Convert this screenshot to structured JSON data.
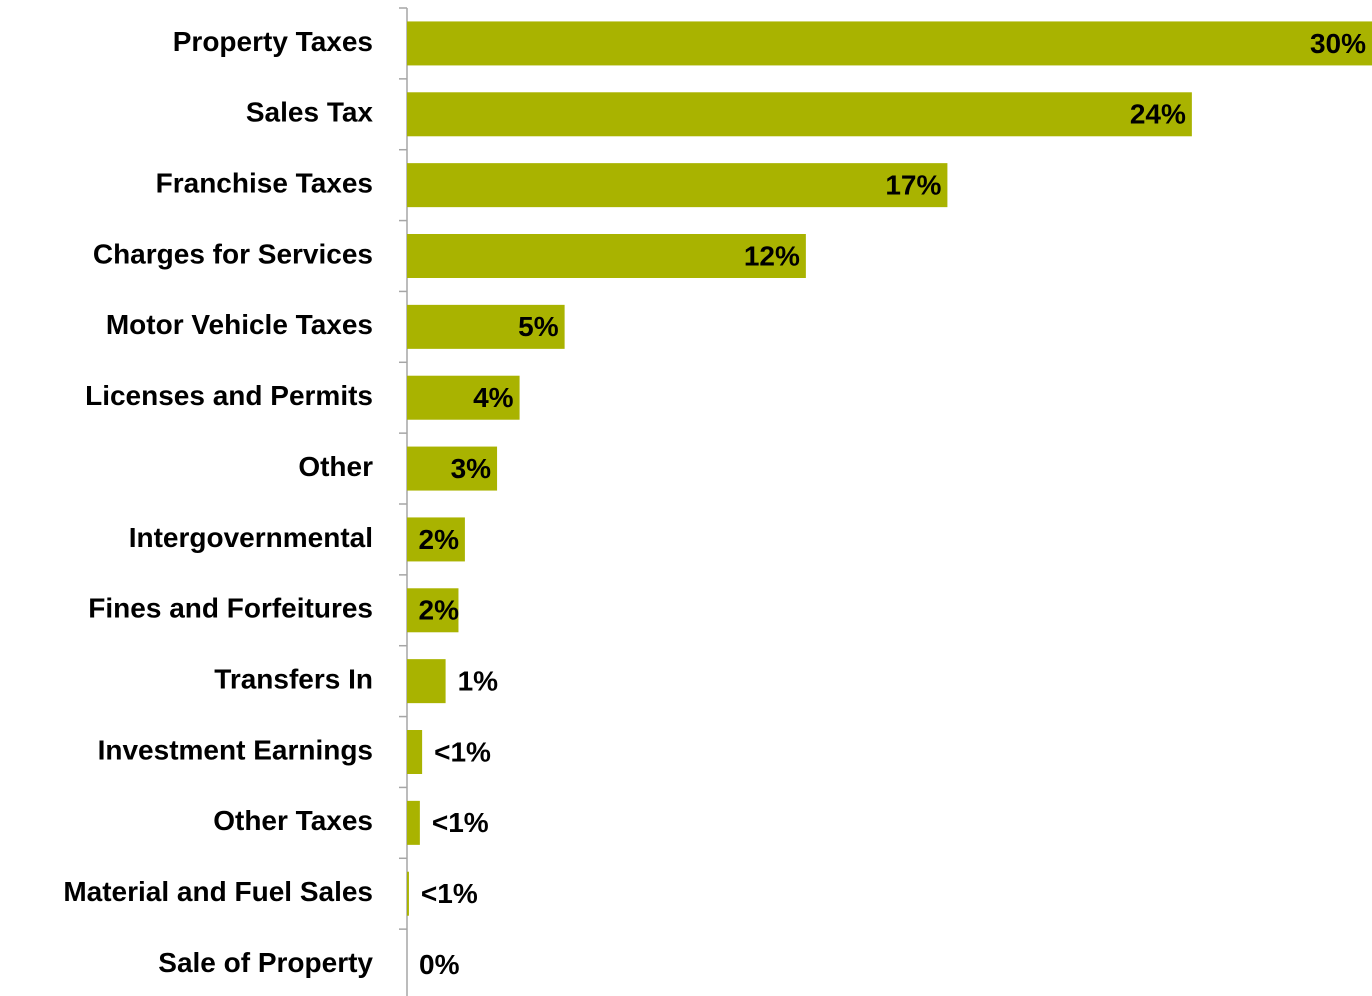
{
  "chart_data": {
    "type": "barh",
    "categories": [
      "Property Taxes",
      "Sales Tax",
      "Franchise Taxes",
      "Charges for Services",
      "Motor Vehicle Taxes",
      "Licenses and Permits",
      "Other",
      "Intergovernmental",
      "Fines and Forfeitures",
      "Transfers In",
      "Investment Earnings",
      "Other Taxes",
      "Material and Fuel Sales",
      "Sale of Property"
    ],
    "values": [
      30,
      24.4,
      16.8,
      12.4,
      4.9,
      3.5,
      2.8,
      1.8,
      1.6,
      1.2,
      0.47,
      0.4,
      0.06,
      0
    ],
    "value_labels": [
      "30%",
      "24%",
      "17%",
      "12%",
      "5%",
      "4%",
      "3%",
      "2%",
      "2%",
      "1%",
      "<1%",
      "<1%",
      "<1%",
      "0%"
    ],
    "color": "#a9b300",
    "xlim": [
      0,
      30
    ]
  }
}
